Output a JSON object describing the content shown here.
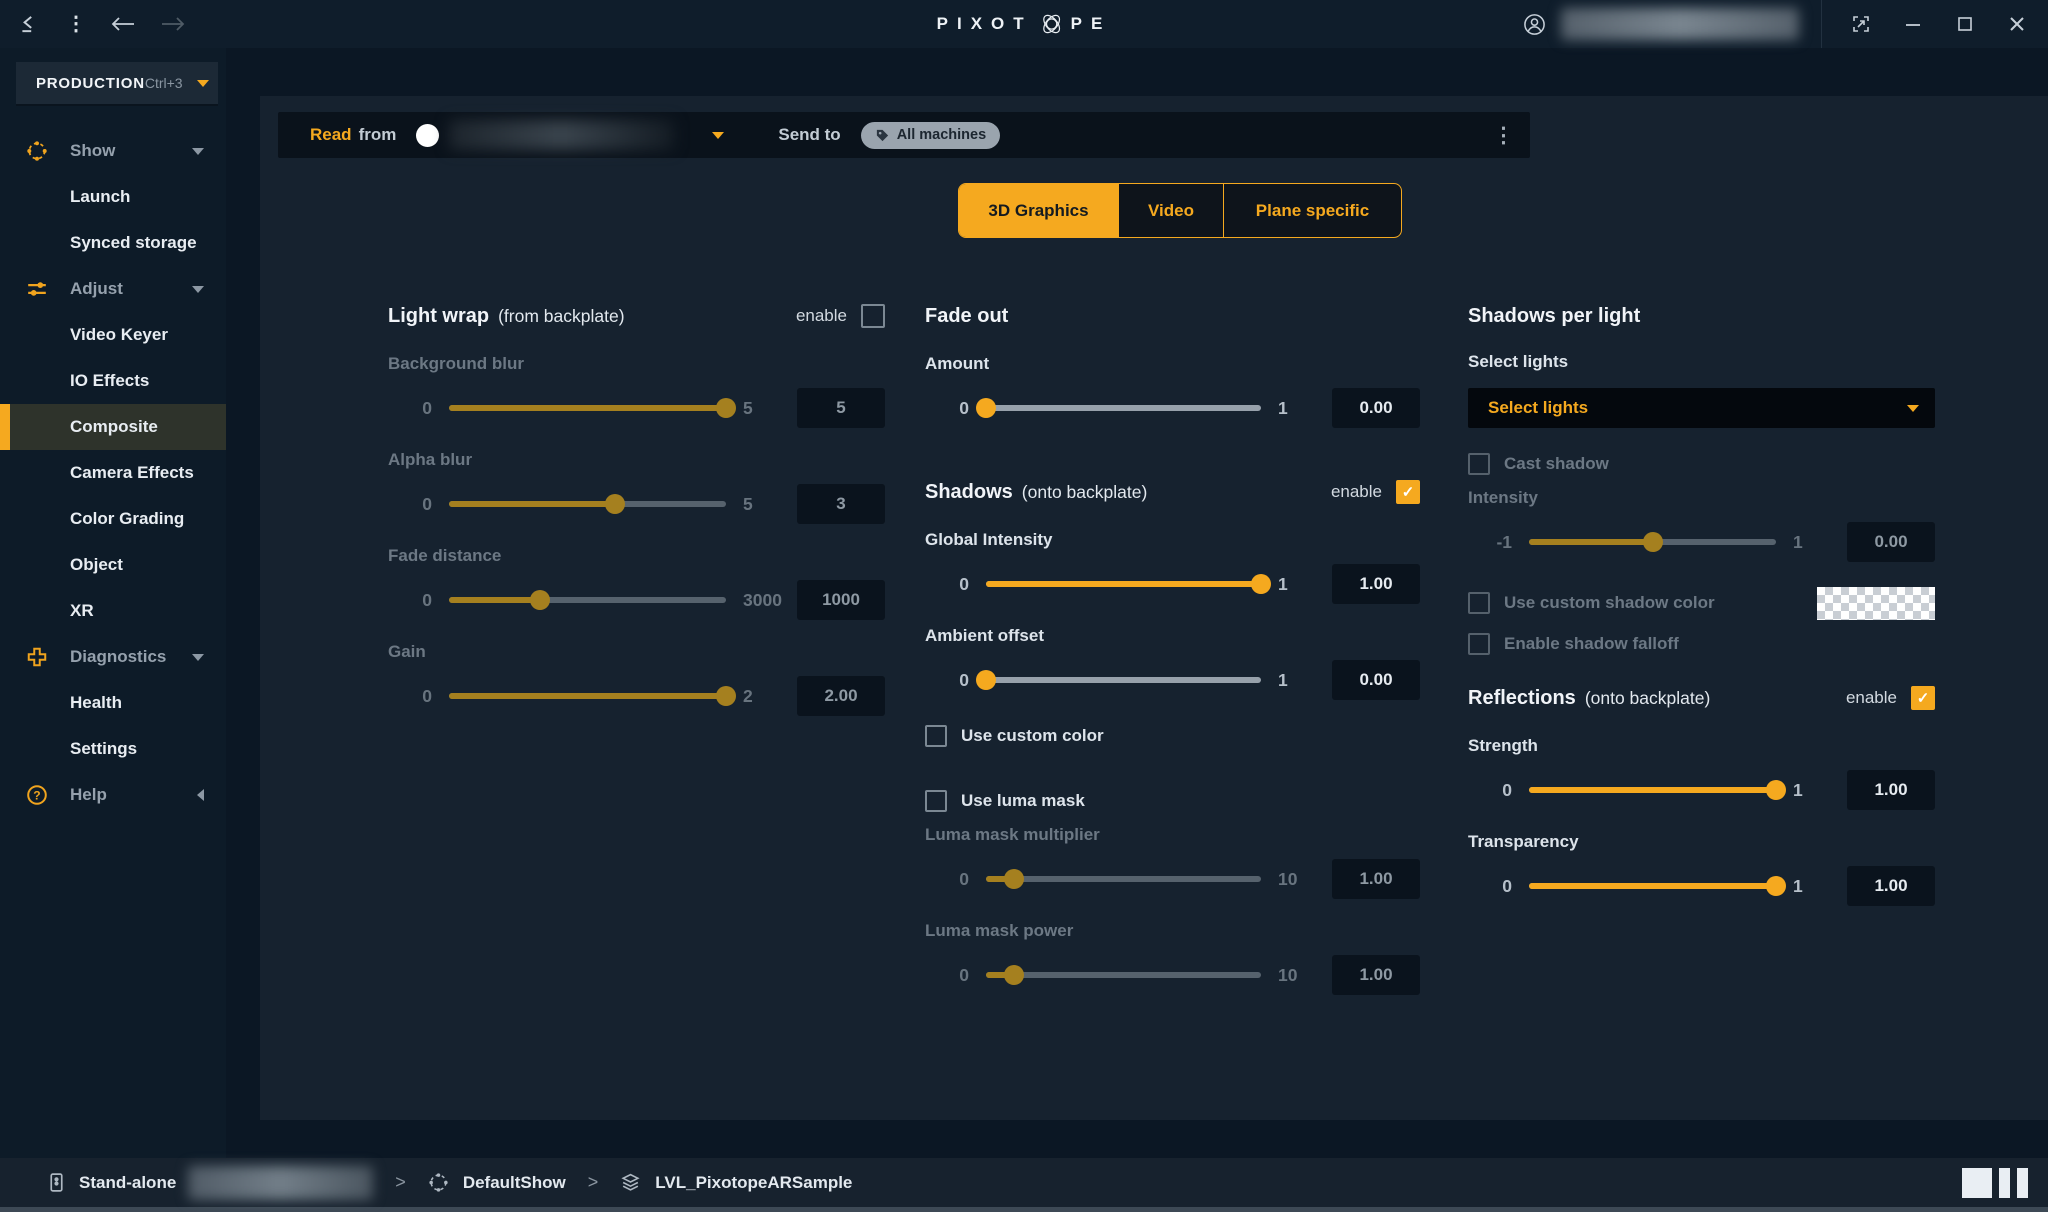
{
  "colors": {
    "accent": "#f5a91f",
    "panel_bg": "#16222f",
    "sidebar_bg": "#0d1b28"
  },
  "titlebar": {
    "logo_left": "PIXOT",
    "logo_right": "PE"
  },
  "sidebar": {
    "mode_label": "PRODUCTION",
    "mode_shortcut": "Ctrl+3",
    "items": [
      {
        "label": "Show",
        "type": "section",
        "icon": "show-icon",
        "caret": "down"
      },
      {
        "label": "Launch",
        "type": "item"
      },
      {
        "label": "Synced storage",
        "type": "item"
      },
      {
        "label": "Adjust",
        "type": "section",
        "icon": "adjust-icon",
        "caret": "down"
      },
      {
        "label": "Video Keyer",
        "type": "item"
      },
      {
        "label": "IO Effects",
        "type": "item"
      },
      {
        "label": "Composite",
        "type": "item",
        "selected": true
      },
      {
        "label": "Camera Effects",
        "type": "item"
      },
      {
        "label": "Color Grading",
        "type": "item"
      },
      {
        "label": "Object",
        "type": "item"
      },
      {
        "label": "XR",
        "type": "item"
      },
      {
        "label": "Diagnostics",
        "type": "section",
        "icon": "diagnostics-icon",
        "caret": "down"
      },
      {
        "label": "Health",
        "type": "item"
      },
      {
        "label": "Settings",
        "type": "item"
      },
      {
        "label": "Help",
        "type": "section",
        "icon": "help-icon",
        "caret": "left"
      }
    ]
  },
  "readbar": {
    "read_word": "Read",
    "from_word": "from",
    "send_to": "Send to",
    "machines_tag": "All machines"
  },
  "tabs": [
    {
      "label": "3D Graphics",
      "active": true
    },
    {
      "label": "Video",
      "active": false
    },
    {
      "label": "Plane specific",
      "active": false
    }
  ],
  "panels": {
    "light_wrap": {
      "title": "Light wrap",
      "subtitle": "(from backplate)",
      "enable_label": "enable",
      "enable_checked": false,
      "controls": [
        {
          "type": "slider",
          "label": "Background blur",
          "min": "0",
          "max": "5",
          "value": "5",
          "fraction": 1,
          "disabled": true
        },
        {
          "type": "slider",
          "label": "Alpha blur",
          "min": "0",
          "max": "5",
          "value": "3",
          "fraction": 0.6,
          "disabled": true
        },
        {
          "type": "slider",
          "label": "Fade distance",
          "min": "0",
          "max": "3000",
          "value": "1000",
          "fraction": 0.33,
          "disabled": true
        },
        {
          "type": "slider",
          "label": "Gain",
          "min": "0",
          "max": "2",
          "value": "2.00",
          "fraction": 1,
          "disabled": true
        }
      ]
    },
    "fade_out": {
      "title": "Fade out",
      "controls": [
        {
          "type": "slider",
          "label": "Amount",
          "min": "0",
          "max": "1",
          "value": "0.00",
          "fraction": 0,
          "disabled": false
        }
      ]
    },
    "shadows": {
      "title": "Shadows",
      "subtitle": "(onto backplate)",
      "enable_label": "enable",
      "enable_checked": true,
      "controls": [
        {
          "type": "slider",
          "label": "Global Intensity",
          "min": "0",
          "max": "1",
          "value": "1.00",
          "fraction": 1,
          "disabled": false
        },
        {
          "type": "slider",
          "label": "Ambient offset",
          "min": "0",
          "max": "1",
          "value": "0.00",
          "fraction": 0,
          "disabled": false
        },
        {
          "type": "checkbox",
          "label": "Use custom color",
          "checked": false,
          "disabled": false
        },
        {
          "type": "checkbox",
          "label": "Use luma mask",
          "checked": false,
          "disabled": false
        },
        {
          "type": "slider",
          "label": "Luma mask multiplier",
          "min": "0",
          "max": "10",
          "value": "1.00",
          "fraction": 0.1,
          "disabled": true
        },
        {
          "type": "slider",
          "label": "Luma mask power",
          "min": "0",
          "max": "10",
          "value": "1.00",
          "fraction": 0.1,
          "disabled": true
        }
      ]
    },
    "shadows_per_light": {
      "title": "Shadows per light",
      "controls": [
        {
          "type": "dropdown",
          "label": "Select lights",
          "value": "Select lights",
          "disabled": false
        },
        {
          "type": "checkbox",
          "label": "Cast shadow",
          "checked": false,
          "disabled": true
        },
        {
          "type": "slider",
          "label": "Intensity",
          "min": "-1",
          "max": "1",
          "value": "0.00",
          "fraction": 0.5,
          "disabled": true
        },
        {
          "type": "checkbox",
          "label": "Use custom shadow color",
          "checked": false,
          "disabled": true,
          "swatch": true
        },
        {
          "type": "checkbox",
          "label": "Enable shadow falloff",
          "checked": false,
          "disabled": true
        }
      ]
    },
    "reflections": {
      "title": "Reflections",
      "subtitle": "(onto backplate)",
      "enable_label": "enable",
      "enable_checked": true,
      "controls": [
        {
          "type": "slider",
          "label": "Strength",
          "min": "0",
          "max": "1",
          "value": "1.00",
          "fraction": 1,
          "disabled": false
        },
        {
          "type": "slider",
          "label": "Transparency",
          "min": "0",
          "max": "1",
          "value": "1.00",
          "fraction": 1,
          "disabled": false
        }
      ]
    }
  },
  "statusbar": {
    "context_label": "Stand-alone",
    "separator": ">",
    "show_name": "DefaultShow",
    "level_name": "LVL_PixotopeARSample"
  }
}
